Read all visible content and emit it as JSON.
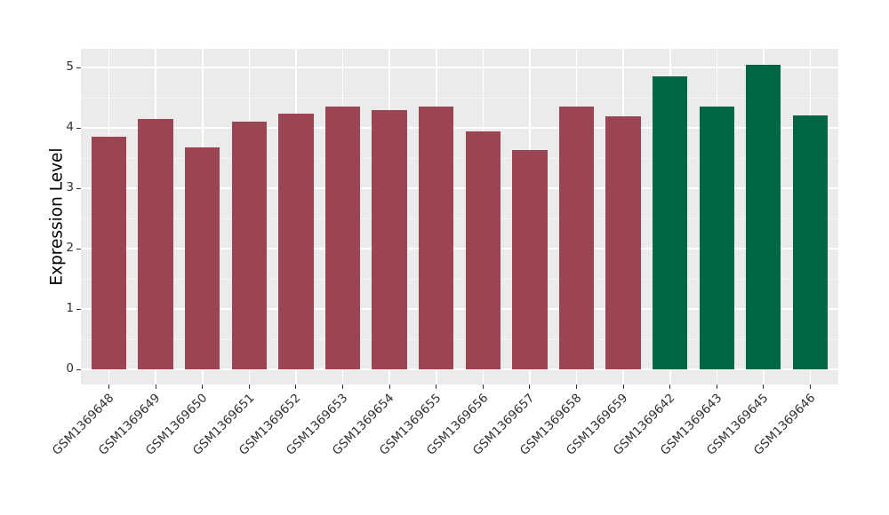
{
  "chart_data": {
    "type": "bar",
    "title": "",
    "xlabel": "",
    "ylabel": "Expression Level",
    "categories": [
      "GSM1369648",
      "GSM1369649",
      "GSM1369650",
      "GSM1369651",
      "GSM1369652",
      "GSM1369653",
      "GSM1369654",
      "GSM1369655",
      "GSM1369656",
      "GSM1369657",
      "GSM1369658",
      "GSM1369659",
      "GSM1369642",
      "GSM1369643",
      "GSM1369645",
      "GSM1369646"
    ],
    "values": [
      3.86,
      4.15,
      3.68,
      4.11,
      4.24,
      4.35,
      4.3,
      4.36,
      3.95,
      3.64,
      4.36,
      4.2,
      4.86,
      4.36,
      5.04,
      4.21
    ],
    "bar_colors": [
      "#9B4452",
      "#9B4452",
      "#9B4452",
      "#9B4452",
      "#9B4452",
      "#9B4452",
      "#9B4452",
      "#9B4452",
      "#9B4452",
      "#9B4452",
      "#9B4452",
      "#9B4452",
      "#006645",
      "#006645",
      "#006645",
      "#006645"
    ],
    "yticks": [
      0,
      1,
      2,
      3,
      4,
      5
    ],
    "minor_yticks": [
      0.5,
      1.5,
      2.5,
      3.5,
      4.5
    ],
    "ylim": [
      -0.25,
      5.31
    ],
    "grid": true,
    "legend_position": "none",
    "colors": {
      "panel_bg": "#EBEBEB",
      "grid_major": "#FFFFFF",
      "grid_minor": "#F5F5F5",
      "tick_mark": "#333333",
      "axis_text": "#303030",
      "axis_title": "#000000",
      "figure_bg": "#FFFFFF"
    }
  }
}
